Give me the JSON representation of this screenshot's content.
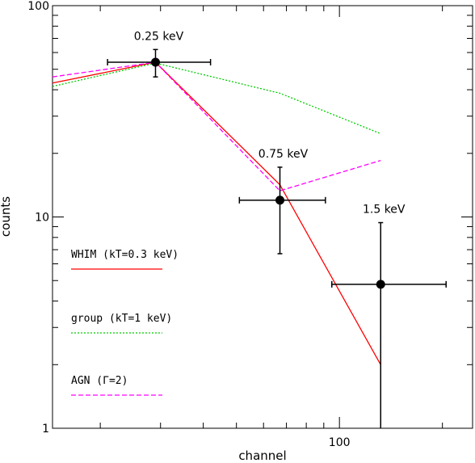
{
  "chart_data": {
    "type": "line",
    "xlabel": "channel",
    "ylabel": "counts",
    "xscale": "log",
    "yscale": "log",
    "xlim": [
      14.5,
      245
    ],
    "ylim": [
      1,
      100
    ],
    "x_tick_labels": [
      {
        "value": 100,
        "label": "100"
      }
    ],
    "y_tick_labels": [
      {
        "value": 1,
        "label": "1"
      },
      {
        "value": 10,
        "label": "10"
      },
      {
        "value": 100,
        "label": "100"
      }
    ],
    "data_points": {
      "x": [
        29,
        67,
        132
      ],
      "y": [
        54,
        12,
        4.8
      ],
      "x_err_low": [
        21,
        51,
        95
      ],
      "x_err_high": [
        42,
        91,
        205
      ],
      "y_err_low": [
        46,
        6.7,
        1
      ],
      "y_err_high": [
        62,
        17.2,
        9.4
      ],
      "labels": [
        "0.25 keV",
        "0.75 keV",
        "1.5 keV"
      ]
    },
    "series": [
      {
        "name": "WHIM (kT=0.3 keV)",
        "color": "#ff0000",
        "dash": "solid",
        "x": [
          14.5,
          29,
          67,
          132
        ],
        "y": [
          43,
          54,
          14.2,
          2.0
        ]
      },
      {
        "name": "group (kT=1 keV)",
        "color": "#00cc00",
        "dash": "dotted",
        "x": [
          14.5,
          29,
          67,
          132
        ],
        "y": [
          41.5,
          53.5,
          38.5,
          24.8
        ]
      },
      {
        "name": "AGN (Γ=2)",
        "color": "#ff00ff",
        "dash": "dashed",
        "x": [
          14.5,
          29,
          67,
          132
        ],
        "y": [
          46,
          54,
          13.3,
          18.5
        ]
      }
    ],
    "legend_position": "left",
    "grid": false
  }
}
